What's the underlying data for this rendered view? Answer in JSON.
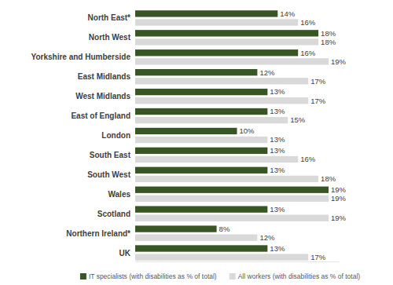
{
  "chart_data": {
    "type": "bar",
    "orientation": "horizontal",
    "data_labels": true,
    "tick_labels": "y",
    "grid": false,
    "legend": "bottom",
    "categories": [
      "North East*",
      "North West",
      "Yorkshire and Humberside",
      "East Midlands",
      "West Midlands",
      "East of England",
      "London",
      "South East",
      "South West",
      "Wales",
      "Scotland",
      "Northern Ireland*",
      "UK"
    ],
    "xlim": [
      0,
      20
    ],
    "series": [
      {
        "name": "IT specialists (with disabilities as % of total)",
        "color": "#375623",
        "values": [
          14,
          18,
          16,
          12,
          13,
          13,
          10,
          13,
          13,
          19,
          13,
          8,
          13
        ],
        "value_labels": [
          "14%",
          "18%",
          "16%",
          "12%",
          "13%",
          "13%",
          "10%",
          "13%",
          "13%",
          "19%",
          "13%",
          "8%",
          "13%"
        ]
      },
      {
        "name": "All workers (with disabilities as % of total)",
        "color": "#d9d9d9",
        "values": [
          16,
          18,
          19,
          17,
          17,
          15,
          13,
          16,
          18,
          19,
          19,
          12,
          17
        ],
        "value_labels": [
          "16%",
          "18%",
          "19%",
          "17%",
          "17%",
          "15%",
          "13%",
          "16%",
          "18%",
          "19%",
          "19%",
          "12%",
          "17%"
        ]
      }
    ]
  }
}
